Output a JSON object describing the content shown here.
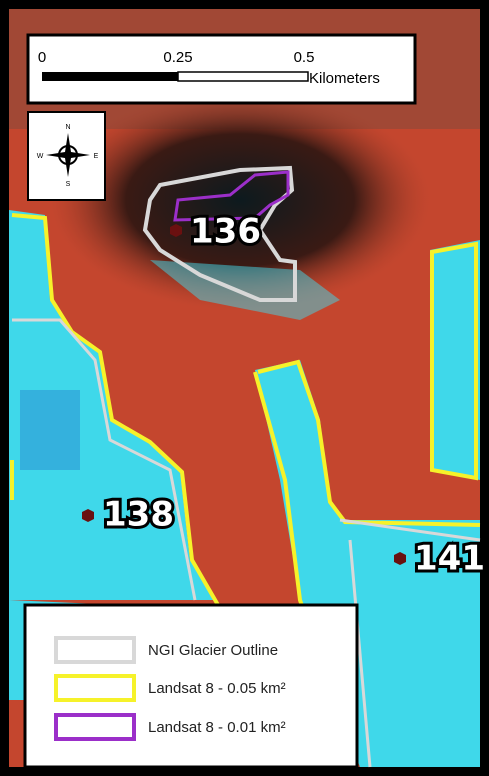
{
  "scale_bar": {
    "labels": [
      "0",
      "0.25",
      "0.5"
    ],
    "unit": "Kilometers"
  },
  "compass": {
    "n": "N",
    "s": "S",
    "e": "E",
    "w": "W"
  },
  "sites": [
    {
      "label": "136"
    },
    {
      "label": "138"
    },
    {
      "label": "141"
    }
  ],
  "legend": {
    "items": [
      {
        "label": "NGI Glacier Outline"
      },
      {
        "label": "Landsat 8 - 0.05 km²"
      },
      {
        "label": "Landsat 8 - 0.01 km²"
      }
    ]
  }
}
